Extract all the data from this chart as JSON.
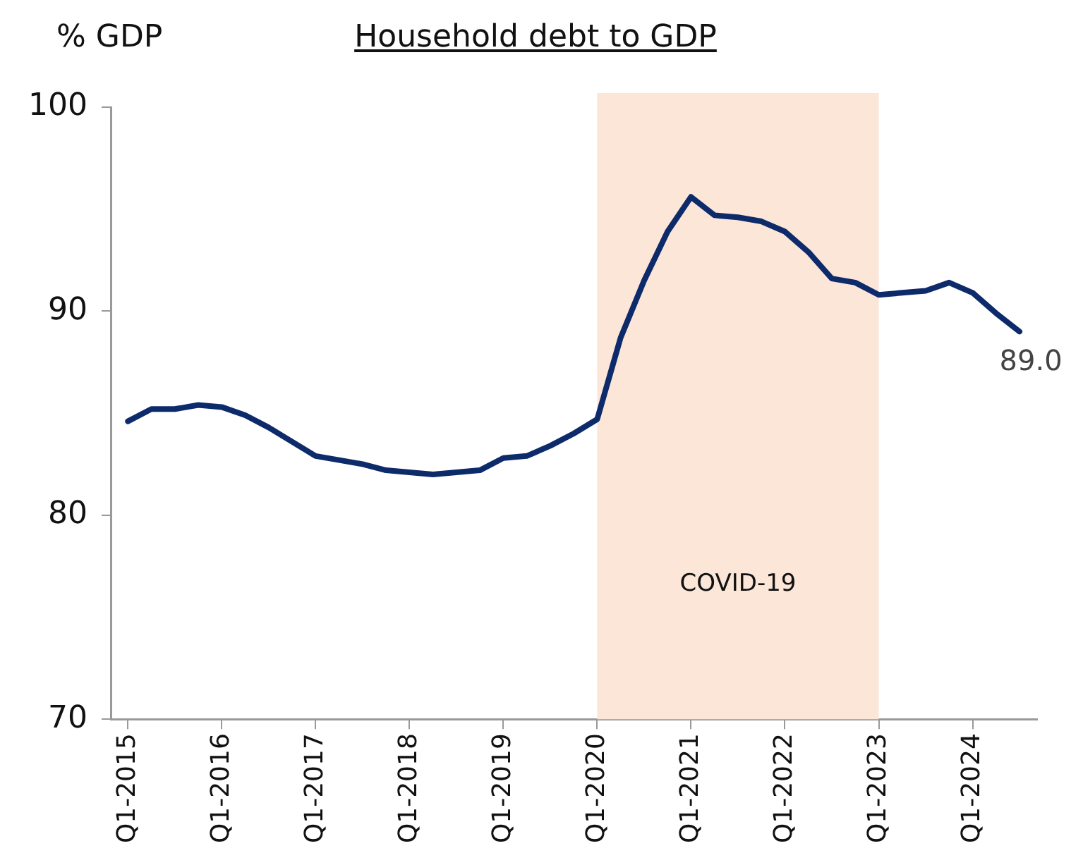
{
  "chart_data": {
    "type": "line",
    "title": "Household debt to GDP",
    "ylabel": "% GDP",
    "categories": [
      "Q1-2015",
      null,
      null,
      null,
      "Q1-2016",
      null,
      null,
      null,
      "Q1-2017",
      null,
      null,
      null,
      "Q1-2018",
      null,
      null,
      null,
      "Q1-2019",
      null,
      null,
      null,
      "Q1-2020",
      null,
      null,
      null,
      "Q1-2021",
      null,
      null,
      null,
      "Q1-2022",
      null,
      null,
      null,
      "Q1-2023",
      null,
      null,
      null,
      "Q1-2024",
      null,
      null
    ],
    "series": [
      {
        "color": "#0d2a6b",
        "values": [
          84.6,
          85.2,
          85.2,
          85.4,
          85.3,
          84.9,
          84.3,
          83.6,
          82.9,
          82.7,
          82.5,
          82.2,
          82.1,
          82.0,
          82.1,
          82.2,
          82.8,
          82.9,
          83.4,
          84.0,
          84.7,
          88.7,
          91.5,
          93.9,
          95.6,
          94.7,
          94.6,
          94.4,
          93.9,
          92.9,
          91.6,
          91.4,
          90.8,
          90.9,
          91.0,
          91.4,
          90.9,
          89.9,
          89.0
        ],
        "value_labels": [
          null,
          null,
          null,
          null,
          null,
          null,
          null,
          null,
          null,
          null,
          null,
          null,
          null,
          null,
          null,
          null,
          null,
          null,
          null,
          null,
          null,
          null,
          null,
          null,
          null,
          null,
          null,
          null,
          null,
          null,
          null,
          null,
          null,
          null,
          null,
          null,
          null,
          null,
          "89.0"
        ]
      }
    ],
    "ylim": [
      70,
      100
    ],
    "yticks": [
      70,
      80,
      90,
      100
    ],
    "bands": [
      {
        "axis": "x",
        "from": "Q1-2020",
        "to": "Q1-2023",
        "label": "COVID-19",
        "color": "#fbe6d8"
      }
    ],
    "grid": false,
    "legend": false,
    "marker": "none",
    "line_style": "solid"
  }
}
